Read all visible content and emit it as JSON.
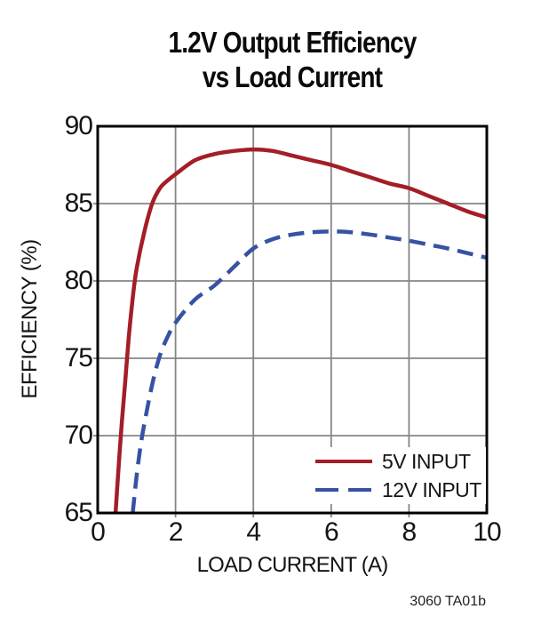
{
  "chart_data": {
    "type": "line",
    "title_line1": "1.2V Output Efficiency",
    "title_line2": "vs Load Current",
    "xlabel": "LOAD CURRENT (A)",
    "ylabel": "EFFICIENCY (%)",
    "note": "3060 TA01b",
    "xlim": [
      0,
      10
    ],
    "ylim": [
      65,
      90
    ],
    "xticks": [
      0,
      2,
      4,
      6,
      8,
      10
    ],
    "yticks": [
      65,
      70,
      75,
      80,
      85,
      90
    ],
    "grid": true,
    "legend_position": "inside-bottom-right",
    "colors": {
      "series_5v": "#A31E26",
      "series_12v": "#3752A3",
      "grid": "#868686",
      "frame": "#000000",
      "text": "#141414"
    },
    "series": [
      {
        "name": "5V INPUT",
        "style": "solid",
        "color": "#A31E26",
        "points": [
          [
            0.46,
            65.0
          ],
          [
            0.5,
            66.6
          ],
          [
            0.6,
            70.2
          ],
          [
            0.7,
            73.3
          ],
          [
            0.8,
            76.4
          ],
          [
            0.9,
            78.9
          ],
          [
            1.0,
            80.8
          ],
          [
            1.2,
            83.2
          ],
          [
            1.4,
            85.0
          ],
          [
            1.6,
            86.0
          ],
          [
            1.8,
            86.5
          ],
          [
            2.0,
            86.9
          ],
          [
            2.5,
            87.8
          ],
          [
            3.0,
            88.2
          ],
          [
            3.5,
            88.4
          ],
          [
            4.0,
            88.5
          ],
          [
            4.5,
            88.4
          ],
          [
            5.0,
            88.1
          ],
          [
            5.5,
            87.8
          ],
          [
            6.0,
            87.5
          ],
          [
            6.5,
            87.1
          ],
          [
            7.0,
            86.7
          ],
          [
            7.5,
            86.3
          ],
          [
            8.0,
            86.0
          ],
          [
            8.5,
            85.5
          ],
          [
            9.0,
            85.0
          ],
          [
            9.5,
            84.5
          ],
          [
            10.0,
            84.1
          ]
        ]
      },
      {
        "name": "12V INPUT",
        "style": "dashed",
        "color": "#3752A3",
        "points": [
          [
            0.9,
            65.0
          ],
          [
            1.0,
            67.4
          ],
          [
            1.1,
            69.3
          ],
          [
            1.2,
            70.8
          ],
          [
            1.4,
            73.3
          ],
          [
            1.6,
            75.2
          ],
          [
            1.8,
            76.4
          ],
          [
            2.0,
            77.3
          ],
          [
            2.5,
            78.8
          ],
          [
            3.0,
            79.7
          ],
          [
            3.5,
            80.9
          ],
          [
            4.0,
            82.1
          ],
          [
            4.5,
            82.7
          ],
          [
            5.0,
            83.0
          ],
          [
            5.5,
            83.15
          ],
          [
            6.0,
            83.2
          ],
          [
            6.5,
            83.15
          ],
          [
            7.0,
            83.0
          ],
          [
            7.5,
            82.8
          ],
          [
            8.0,
            82.6
          ],
          [
            8.5,
            82.35
          ],
          [
            9.0,
            82.1
          ],
          [
            9.5,
            81.8
          ],
          [
            10.0,
            81.5
          ]
        ]
      }
    ]
  }
}
